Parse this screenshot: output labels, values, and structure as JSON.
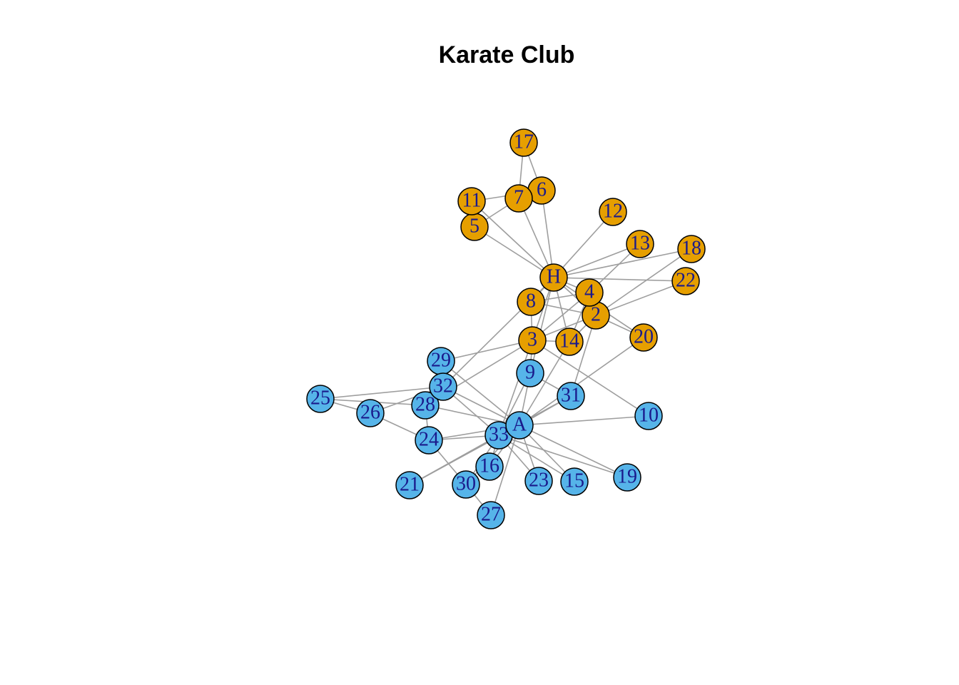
{
  "title": "Karate Club",
  "colors": {
    "faction_H": "#E69F00",
    "faction_A": "#56B4E9",
    "node_label": "#1a1a8c",
    "edge": "#9e9e9e",
    "node_border": "#000000"
  },
  "nodes": [
    {
      "id": "H",
      "label": "H",
      "group": "H"
    },
    {
      "id": "2",
      "label": "2",
      "group": "H"
    },
    {
      "id": "3",
      "label": "3",
      "group": "H"
    },
    {
      "id": "4",
      "label": "4",
      "group": "H"
    },
    {
      "id": "5",
      "label": "5",
      "group": "H"
    },
    {
      "id": "6",
      "label": "6",
      "group": "H"
    },
    {
      "id": "7",
      "label": "7",
      "group": "H"
    },
    {
      "id": "8",
      "label": "8",
      "group": "H"
    },
    {
      "id": "11",
      "label": "11",
      "group": "H"
    },
    {
      "id": "12",
      "label": "12",
      "group": "H"
    },
    {
      "id": "13",
      "label": "13",
      "group": "H"
    },
    {
      "id": "14",
      "label": "14",
      "group": "H"
    },
    {
      "id": "17",
      "label": "17",
      "group": "H"
    },
    {
      "id": "18",
      "label": "18",
      "group": "H"
    },
    {
      "id": "20",
      "label": "20",
      "group": "H"
    },
    {
      "id": "22",
      "label": "22",
      "group": "H"
    },
    {
      "id": "9",
      "label": "9",
      "group": "A"
    },
    {
      "id": "10",
      "label": "10",
      "group": "A"
    },
    {
      "id": "15",
      "label": "15",
      "group": "A"
    },
    {
      "id": "16",
      "label": "16",
      "group": "A"
    },
    {
      "id": "19",
      "label": "19",
      "group": "A"
    },
    {
      "id": "21",
      "label": "21",
      "group": "A"
    },
    {
      "id": "23",
      "label": "23",
      "group": "A"
    },
    {
      "id": "24",
      "label": "24",
      "group": "A"
    },
    {
      "id": "25",
      "label": "25",
      "group": "A"
    },
    {
      "id": "26",
      "label": "26",
      "group": "A"
    },
    {
      "id": "27",
      "label": "27",
      "group": "A"
    },
    {
      "id": "28",
      "label": "28",
      "group": "A"
    },
    {
      "id": "29",
      "label": "29",
      "group": "A"
    },
    {
      "id": "30",
      "label": "30",
      "group": "A"
    },
    {
      "id": "31",
      "label": "31",
      "group": "A"
    },
    {
      "id": "32",
      "label": "32",
      "group": "A"
    },
    {
      "id": "33",
      "label": "33",
      "group": "A"
    },
    {
      "id": "A",
      "label": "A",
      "group": "A"
    }
  ],
  "edges": [
    [
      "H",
      "2"
    ],
    [
      "H",
      "3"
    ],
    [
      "H",
      "4"
    ],
    [
      "H",
      "5"
    ],
    [
      "H",
      "6"
    ],
    [
      "H",
      "7"
    ],
    [
      "H",
      "8"
    ],
    [
      "H",
      "9"
    ],
    [
      "H",
      "11"
    ],
    [
      "H",
      "12"
    ],
    [
      "H",
      "13"
    ],
    [
      "H",
      "14"
    ],
    [
      "H",
      "18"
    ],
    [
      "H",
      "20"
    ],
    [
      "H",
      "22"
    ],
    [
      "H",
      "32"
    ],
    [
      "2",
      "3"
    ],
    [
      "2",
      "4"
    ],
    [
      "2",
      "8"
    ],
    [
      "2",
      "14"
    ],
    [
      "2",
      "18"
    ],
    [
      "2",
      "20"
    ],
    [
      "2",
      "22"
    ],
    [
      "2",
      "31"
    ],
    [
      "3",
      "4"
    ],
    [
      "3",
      "8"
    ],
    [
      "3",
      "9"
    ],
    [
      "3",
      "10"
    ],
    [
      "3",
      "14"
    ],
    [
      "3",
      "28"
    ],
    [
      "3",
      "29"
    ],
    [
      "3",
      "33"
    ],
    [
      "4",
      "8"
    ],
    [
      "4",
      "13"
    ],
    [
      "4",
      "14"
    ],
    [
      "5",
      "7"
    ],
    [
      "5",
      "11"
    ],
    [
      "6",
      "7"
    ],
    [
      "6",
      "11"
    ],
    [
      "6",
      "17"
    ],
    [
      "7",
      "17"
    ],
    [
      "9",
      "31"
    ],
    [
      "9",
      "33"
    ],
    [
      "9",
      "A"
    ],
    [
      "10",
      "A"
    ],
    [
      "14",
      "A"
    ],
    [
      "15",
      "33"
    ],
    [
      "15",
      "A"
    ],
    [
      "16",
      "33"
    ],
    [
      "16",
      "A"
    ],
    [
      "19",
      "33"
    ],
    [
      "19",
      "A"
    ],
    [
      "20",
      "A"
    ],
    [
      "21",
      "33"
    ],
    [
      "21",
      "A"
    ],
    [
      "23",
      "33"
    ],
    [
      "23",
      "A"
    ],
    [
      "24",
      "26"
    ],
    [
      "24",
      "28"
    ],
    [
      "24",
      "30"
    ],
    [
      "24",
      "33"
    ],
    [
      "24",
      "A"
    ],
    [
      "25",
      "26"
    ],
    [
      "25",
      "28"
    ],
    [
      "25",
      "32"
    ],
    [
      "26",
      "32"
    ],
    [
      "27",
      "30"
    ],
    [
      "27",
      "A"
    ],
    [
      "28",
      "A"
    ],
    [
      "29",
      "32"
    ],
    [
      "29",
      "A"
    ],
    [
      "30",
      "33"
    ],
    [
      "30",
      "A"
    ],
    [
      "31",
      "33"
    ],
    [
      "31",
      "A"
    ],
    [
      "32",
      "33"
    ],
    [
      "32",
      "A"
    ],
    [
      "33",
      "A"
    ]
  ]
}
